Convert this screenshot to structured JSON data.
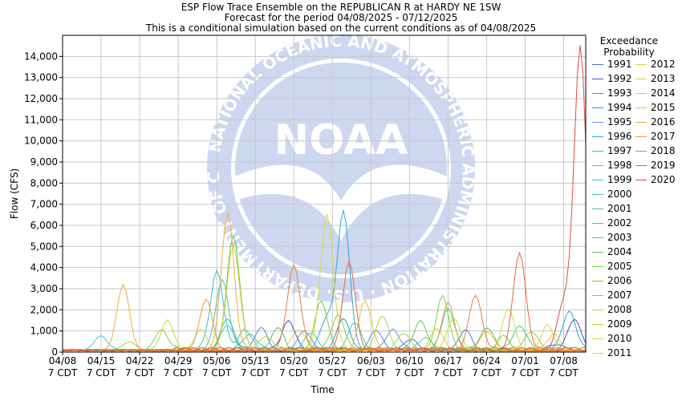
{
  "chart_data": {
    "type": "line",
    "title": "ESP Flow Trace Ensemble on the REPUBLICAN R at HARDY NE 1SW",
    "subtitle_1": "Forecast for the period 04/08/2025 - 07/12/2025",
    "subtitle_2": "This is a conditional simulation based on the current conditions as of 04/08/2025",
    "xlabel": "Time",
    "ylabel": "Flow (CFS)",
    "ylim": [
      0,
      15000
    ],
    "yticks": [
      0,
      1000,
      2000,
      3000,
      4000,
      5000,
      6000,
      7000,
      8000,
      9000,
      10000,
      11000,
      12000,
      13000,
      14000
    ],
    "ytick_labels": [
      "0",
      "1,000",
      "2,000",
      "3,000",
      "4,000",
      "5,000",
      "6,000",
      "7,000",
      "8,000",
      "9,000",
      "10,000",
      "11,000",
      "12,000",
      "13,000",
      "14,000"
    ],
    "xlim_days": [
      0,
      95
    ],
    "xticks_days": [
      0,
      7,
      14,
      21,
      28,
      35,
      42,
      49,
      56,
      63,
      70,
      77,
      84,
      91
    ],
    "xtick_labels": [
      [
        "04/08",
        "7 CDT"
      ],
      [
        "04/15",
        "7 CDT"
      ],
      [
        "04/22",
        "7 CDT"
      ],
      [
        "04/29",
        "7 CDT"
      ],
      [
        "05/06",
        "7 CDT"
      ],
      [
        "05/13",
        "7 CDT"
      ],
      [
        "05/20",
        "7 CDT"
      ],
      [
        "05/27",
        "7 CDT"
      ],
      [
        "06/03",
        "7 CDT"
      ],
      [
        "06/10",
        "7 CDT"
      ],
      [
        "06/17",
        "7 CDT"
      ],
      [
        "06/24",
        "7 CDT"
      ],
      [
        "07/01",
        "7 CDT"
      ],
      [
        "07/08",
        "7 CDT"
      ]
    ],
    "grid": true,
    "legend_title": [
      "Exceedance",
      "Probability"
    ],
    "legend_placement": "right",
    "watermark": "NOAA",
    "watermark_ring_text": "NATIONAL OCEANIC AND ATMOSPHERIC ADMINISTRATION · U.S. DEPARTMENT OF COMMERCE",
    "series": [
      {
        "name": "1991",
        "color": "#4a6fe3",
        "peaks": [
          [
            63,
            500
          ],
          [
            90,
            300
          ]
        ]
      },
      {
        "name": "1992",
        "color": "#3c55c6",
        "peaks": [
          [
            41,
            1400
          ],
          [
            93,
            1500
          ]
        ]
      },
      {
        "name": "1993",
        "color": "#5a7ee6",
        "peaks": [
          [
            36,
            1000
          ],
          [
            57,
            900
          ]
        ]
      },
      {
        "name": "1994",
        "color": "#3a8cd6",
        "peaks": [
          [
            51,
            1500
          ],
          [
            73,
            900
          ]
        ]
      },
      {
        "name": "1995",
        "color": "#6c8de0",
        "peaks": [
          [
            44,
            900
          ],
          [
            60,
            1000
          ]
        ]
      },
      {
        "name": "1996",
        "color": "#2fa3e3",
        "peaks": [
          [
            51,
            6500
          ],
          [
            48,
            1500
          ],
          [
            92,
            1900
          ]
        ]
      },
      {
        "name": "1997",
        "color": "#3fb8d6",
        "peaks": [
          [
            28,
            3800
          ],
          [
            33,
            1000
          ]
        ]
      },
      {
        "name": "1998",
        "color": "#4bc3c3",
        "peaks": [
          [
            7,
            700
          ],
          [
            30,
            1200
          ]
        ]
      },
      {
        "name": "1999",
        "color": "#44c6b3",
        "peaks": [
          [
            29,
            3400
          ],
          [
            45,
            800
          ]
        ]
      },
      {
        "name": "2000",
        "color": "#44c9a8",
        "peaks": [
          [
            53,
            1300
          ],
          [
            66,
            600
          ]
        ]
      },
      {
        "name": "2001",
        "color": "#3dcb92",
        "peaks": [
          [
            30,
            1500
          ],
          [
            70,
            2000
          ]
        ]
      },
      {
        "name": "2002",
        "color": "#49c878",
        "peaks": [
          [
            34,
            800
          ],
          [
            83,
            1200
          ]
        ]
      },
      {
        "name": "2003",
        "color": "#55c462",
        "peaks": [
          [
            39,
            1000
          ],
          [
            77,
            1100
          ]
        ]
      },
      {
        "name": "2004",
        "color": "#5ecb4b",
        "peaks": [
          [
            31,
            5500
          ],
          [
            65,
            1400
          ]
        ]
      },
      {
        "name": "2005",
        "color": "#6ed23f",
        "peaks": [
          [
            47,
            2300
          ],
          [
            80,
            600
          ]
        ]
      },
      {
        "name": "2006",
        "color": "#7ad33a",
        "peaks": [
          [
            18,
            1000
          ],
          [
            69,
            2500
          ]
        ]
      },
      {
        "name": "2007",
        "color": "#8ccf3b",
        "peaks": [
          [
            50,
            1700
          ],
          [
            85,
            900
          ]
        ]
      },
      {
        "name": "2008",
        "color": "#9ad93c",
        "peaks": [
          [
            12,
            400
          ],
          [
            62,
            800
          ]
        ]
      },
      {
        "name": "2009",
        "color": "#b0d63a",
        "peaks": [
          [
            37,
            700
          ],
          [
            58,
            1600
          ]
        ]
      },
      {
        "name": "2010",
        "color": "#c3dc3a",
        "peaks": [
          [
            19,
            1400
          ],
          [
            71,
            1500
          ]
        ]
      },
      {
        "name": "2011",
        "color": "#d2dc38",
        "peaks": [
          [
            48,
            6500
          ],
          [
            81,
            1900
          ]
        ]
      },
      {
        "name": "2012",
        "color": "#dcd636",
        "peaks": [
          [
            25,
            900
          ],
          [
            88,
            1100
          ]
        ]
      },
      {
        "name": "2013",
        "color": "#e2cf36",
        "peaks": [
          [
            31,
            5000
          ],
          [
            68,
            1000
          ]
        ]
      },
      {
        "name": "2014",
        "color": "#e6c839",
        "peaks": [
          [
            43,
            1000
          ],
          [
            89,
            700
          ]
        ]
      },
      {
        "name": "2015",
        "color": "#e9bd3a",
        "peaks": [
          [
            55,
            2300
          ],
          [
            77,
            900
          ]
        ]
      },
      {
        "name": "2016",
        "color": "#eeae3a",
        "peaks": [
          [
            11,
            3100
          ],
          [
            30,
            6500
          ]
        ]
      },
      {
        "name": "2017",
        "color": "#ec9a3b",
        "peaks": [
          [
            26,
            2400
          ],
          [
            70,
            2200
          ]
        ]
      },
      {
        "name": "2018",
        "color": "#e97d3e",
        "peaks": [
          [
            42,
            4100
          ],
          [
            75,
            2600
          ]
        ]
      },
      {
        "name": "2019",
        "color": "#e5663f",
        "peaks": [
          [
            52,
            4100
          ],
          [
            83,
            4600
          ]
        ]
      },
      {
        "name": "2020",
        "color": "#db5036",
        "peaks": [
          [
            94,
            14300
          ],
          [
            91,
            2100
          ]
        ]
      }
    ]
  }
}
